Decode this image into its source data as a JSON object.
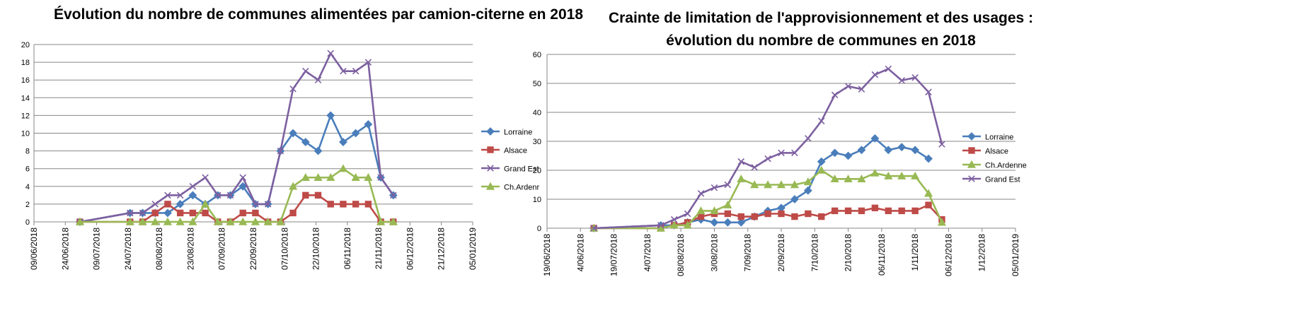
{
  "chart_data": [
    {
      "type": "line",
      "title": "Évolution du nombre de communes alimentées par camion-citerne en 2018",
      "x_tick_labels": [
        "09/06/2018",
        "24/06/2018",
        "09/07/2018",
        "24/07/2018",
        "08/08/2018",
        "23/08/2018",
        "07/09/2018",
        "22/09/2018",
        "07/10/2018",
        "22/10/2018",
        "06/11/2018",
        "21/11/2018",
        "06/12/2018",
        "21/12/2018",
        "05/01/2019"
      ],
      "xlim": [
        "2018-06-09",
        "2019-01-05"
      ],
      "ylim": [
        0,
        20
      ],
      "y_ticks": [
        0,
        2,
        4,
        6,
        8,
        10,
        12,
        14,
        16,
        18,
        20
      ],
      "grid": "horizontal",
      "legend": "right",
      "x": [
        "2018-07-01",
        "2018-07-25",
        "2018-07-31",
        "2018-08-06",
        "2018-08-12",
        "2018-08-18",
        "2018-08-24",
        "2018-08-30",
        "2018-09-05",
        "2018-09-11",
        "2018-09-17",
        "2018-09-23",
        "2018-09-29",
        "2018-10-05",
        "2018-10-11",
        "2018-10-17",
        "2018-10-23",
        "2018-10-29",
        "2018-11-04",
        "2018-11-10",
        "2018-11-16",
        "2018-11-22",
        "2018-11-28",
        "2018-12-04",
        "2018-12-10",
        "2018-12-16"
      ],
      "series": [
        {
          "name": "Lorraine",
          "color": "#4a7ebb",
          "marker": "diamond",
          "values": [
            0,
            1,
            1,
            1,
            1,
            2,
            3,
            2,
            3,
            3,
            4,
            2,
            2,
            8,
            10,
            9,
            8,
            12,
            9,
            10,
            11,
            5,
            3,
            null,
            null,
            null
          ]
        },
        {
          "name": "Alsace",
          "color": "#be4b48",
          "marker": "square",
          "values": [
            0,
            0,
            0,
            1,
            2,
            1,
            1,
            1,
            0,
            0,
            1,
            1,
            0,
            0,
            1,
            3,
            3,
            2,
            2,
            2,
            2,
            0,
            0,
            null,
            null,
            null
          ]
        },
        {
          "name": "Grand Est",
          "color": "#7d60a0",
          "marker": "x",
          "values": [
            0,
            1,
            1,
            2,
            3,
            3,
            4,
            5,
            3,
            3,
            5,
            2,
            2,
            8,
            15,
            17,
            16,
            19,
            17,
            17,
            18,
            5,
            3,
            null,
            null,
            null
          ]
        },
        {
          "name": "Ch.Ardenr",
          "color": "#98b954",
          "marker": "triangle",
          "values": [
            0,
            0,
            0,
            0,
            0,
            0,
            0,
            2,
            0,
            0,
            0,
            0,
            0,
            0,
            4,
            5,
            5,
            5,
            6,
            5,
            5,
            0,
            0,
            null,
            null,
            null
          ]
        }
      ]
    },
    {
      "type": "line",
      "title_lines": [
        "Crainte de limitation de l'approvisionnement et des usages :",
        "évolution du nombre de communes en 2018"
      ],
      "x_tick_labels": [
        "19/06/2018",
        "4/06/2018",
        "19/07/2018",
        "4/07/2018",
        "08/08/2018",
        "3/08/2018",
        "7/09/2018",
        "2/09/2018",
        "7/10/2018",
        "2/10/2018",
        "06/11/2018",
        "1/11/2018",
        "06/12/2018",
        "1/12/2018",
        "05/01/2019"
      ],
      "xlim": [
        "2018-06-09",
        "2019-01-05"
      ],
      "ylim": [
        0,
        60
      ],
      "y_ticks": [
        0,
        10,
        20,
        30,
        40,
        50,
        60
      ],
      "grid": "horizontal",
      "legend": "right",
      "x": [
        "2018-06-30",
        "2018-07-30",
        "2018-08-05",
        "2018-08-11",
        "2018-08-17",
        "2018-08-23",
        "2018-08-29",
        "2018-09-04",
        "2018-09-10",
        "2018-09-16",
        "2018-09-22",
        "2018-09-28",
        "2018-10-04",
        "2018-10-10",
        "2018-10-16",
        "2018-10-22",
        "2018-10-28",
        "2018-11-03",
        "2018-11-09",
        "2018-11-15",
        "2018-11-21",
        "2018-11-27",
        "2018-12-03",
        "2018-12-09"
      ],
      "series": [
        {
          "name": "Lorraine",
          "color": "#4a7ebb",
          "marker": "diamond",
          "values": [
            0,
            1,
            1,
            2,
            3,
            2,
            2,
            2,
            4,
            6,
            7,
            10,
            13,
            23,
            26,
            25,
            27,
            31,
            27,
            28,
            27,
            24,
            null,
            null
          ]
        },
        {
          "name": "Alsace",
          "color": "#be4b48",
          "marker": "square",
          "values": [
            0,
            0,
            1,
            2,
            4,
            5,
            5,
            4,
            4,
            5,
            5,
            4,
            5,
            4,
            6,
            6,
            6,
            7,
            6,
            6,
            6,
            8,
            3,
            null
          ]
        },
        {
          "name": "Ch.Ardenne",
          "color": "#98b954",
          "marker": "triangle",
          "values": [
            0,
            0,
            1,
            1,
            6,
            6,
            8,
            17,
            15,
            15,
            15,
            15,
            16,
            20,
            17,
            17,
            17,
            19,
            18,
            18,
            18,
            12,
            2,
            null
          ]
        },
        {
          "name": "Grand Est",
          "color": "#7d60a0",
          "marker": "x",
          "values": [
            0,
            1,
            3,
            5,
            12,
            14,
            15,
            23,
            21,
            24,
            26,
            26,
            31,
            37,
            46,
            49,
            48,
            53,
            55,
            51,
            52,
            47,
            29,
            null
          ]
        }
      ]
    }
  ]
}
